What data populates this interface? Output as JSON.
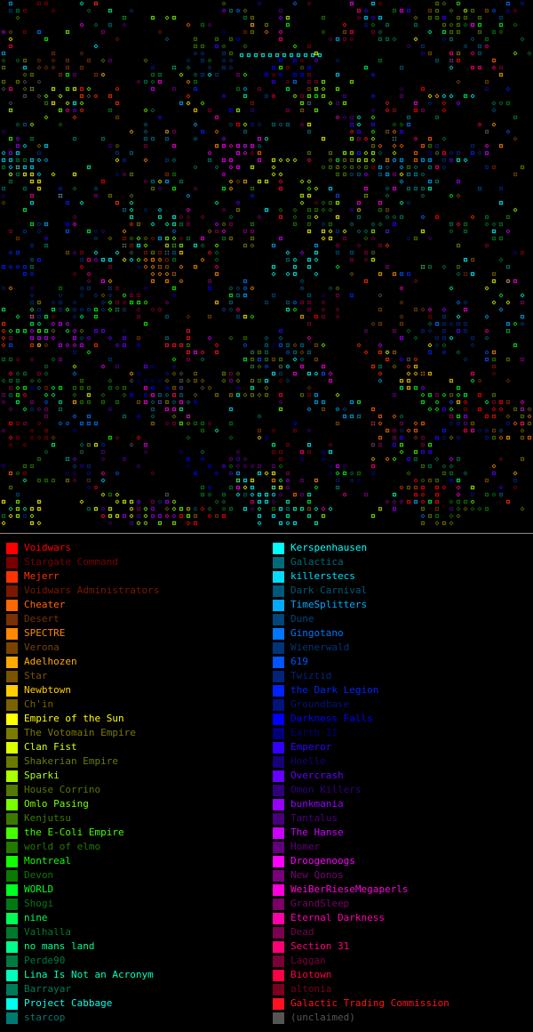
{
  "legend": {
    "left": [
      {
        "name": "Voidwars",
        "color": "#ff0000",
        "active": true
      },
      {
        "name": "Stargate Command",
        "color": "#7a0000",
        "active": false
      },
      {
        "name": "Mejerr",
        "color": "#ff3300",
        "active": true
      },
      {
        "name": "Voidwars Administrators",
        "color": "#7a1800",
        "active": false
      },
      {
        "name": "Cheater",
        "color": "#ff6600",
        "active": true
      },
      {
        "name": "Desert",
        "color": "#7a3000",
        "active": false
      },
      {
        "name": "SPECTRE",
        "color": "#ff8800",
        "active": true
      },
      {
        "name": "Verona",
        "color": "#7a4200",
        "active": false
      },
      {
        "name": "Adelhozen",
        "color": "#ffaa00",
        "active": true
      },
      {
        "name": "Star",
        "color": "#7a5200",
        "active": false
      },
      {
        "name": "Newbtown",
        "color": "#ffcc00",
        "active": true
      },
      {
        "name": "Ch'in",
        "color": "#7a6200",
        "active": false
      },
      {
        "name": "Empire of the Sun",
        "color": "#ffff00",
        "active": true
      },
      {
        "name": "The Votomain Empire",
        "color": "#7a7a00",
        "active": false
      },
      {
        "name": "Clan Fist",
        "color": "#ddff00",
        "active": true
      },
      {
        "name": "Shakerian Empire",
        "color": "#6a7a00",
        "active": false
      },
      {
        "name": "Sparki",
        "color": "#aaff00",
        "active": true
      },
      {
        "name": "House Corrino",
        "color": "#527a00",
        "active": false
      },
      {
        "name": "Omlo Pasing",
        "color": "#77ff00",
        "active": true
      },
      {
        "name": "Kenjutsu",
        "color": "#3a7a00",
        "active": false
      },
      {
        "name": "the E-Coli Empire",
        "color": "#44ff00",
        "active": true
      },
      {
        "name": "world of elmo",
        "color": "#227a00",
        "active": false
      },
      {
        "name": "Montreal",
        "color": "#11ff00",
        "active": true
      },
      {
        "name": "Devon",
        "color": "#0a7a00",
        "active": false
      },
      {
        "name": "WORLD",
        "color": "#00ff22",
        "active": true
      },
      {
        "name": "Shogi",
        "color": "#007a10",
        "active": false
      },
      {
        "name": "nine",
        "color": "#00ff55",
        "active": true
      },
      {
        "name": "Valhalla",
        "color": "#007a28",
        "active": false
      },
      {
        "name": "no mans land",
        "color": "#00ff88",
        "active": true
      },
      {
        "name": "Perde90",
        "color": "#007a40",
        "active": false
      },
      {
        "name": "Lina Is Not an Acronym",
        "color": "#00ffbb",
        "active": true
      },
      {
        "name": "Barrayar",
        "color": "#007a58",
        "active": false
      },
      {
        "name": "Project Cabbage",
        "color": "#00ffee",
        "active": true
      },
      {
        "name": "starcop",
        "color": "#007a70",
        "active": false
      }
    ],
    "right": [
      {
        "name": "Kerspenhausen",
        "color": "#00ffff",
        "active": true
      },
      {
        "name": "Galactica",
        "color": "#006a7a",
        "active": false
      },
      {
        "name": "killerstecs",
        "color": "#00ddff",
        "active": true
      },
      {
        "name": "Dark Carnival",
        "color": "#00587a",
        "active": false
      },
      {
        "name": "TimeSplitters",
        "color": "#00aaff",
        "active": true
      },
      {
        "name": "Dune",
        "color": "#00467a",
        "active": false
      },
      {
        "name": "Gingotano",
        "color": "#0077ff",
        "active": true
      },
      {
        "name": "Wienerwald",
        "color": "#00347a",
        "active": false
      },
      {
        "name": "619",
        "color": "#0055ff",
        "active": true
      },
      {
        "name": "Twiztid",
        "color": "#00247a",
        "active": false
      },
      {
        "name": "the Dark Legion",
        "color": "#0022ff",
        "active": true
      },
      {
        "name": "Groundbase",
        "color": "#00147a",
        "active": false
      },
      {
        "name": "Darkness Falls",
        "color": "#0000ff",
        "active": true
      },
      {
        "name": "Earth II",
        "color": "#00007a",
        "active": false
      },
      {
        "name": "Emperor",
        "color": "#3300ff",
        "active": true
      },
      {
        "name": "Hoelle",
        "color": "#18007a",
        "active": false
      },
      {
        "name": "Overcrash",
        "color": "#6600ff",
        "active": true
      },
      {
        "name": "Omen Killers",
        "color": "#30007a",
        "active": false
      },
      {
        "name": "bunkmania",
        "color": "#9900ff",
        "active": true
      },
      {
        "name": "Tantalus",
        "color": "#48007a",
        "active": false
      },
      {
        "name": "The Hanse",
        "color": "#cc00ff",
        "active": true
      },
      {
        "name": "Homer",
        "color": "#60007a",
        "active": false
      },
      {
        "name": "Droogenoogs",
        "color": "#ff00ff",
        "active": true
      },
      {
        "name": "New Qonos",
        "color": "#7a007a",
        "active": false
      },
      {
        "name": "WeiBerRieseMegaperls",
        "color": "#ff00dd",
        "active": true
      },
      {
        "name": "GrandSleep",
        "color": "#7a0068",
        "active": false
      },
      {
        "name": "Eternal Darkness",
        "color": "#ff00aa",
        "active": true
      },
      {
        "name": "Dead",
        "color": "#7a0050",
        "active": false
      },
      {
        "name": "Section 31",
        "color": "#ff0077",
        "active": true
      },
      {
        "name": "Laggan",
        "color": "#7a0038",
        "active": false
      },
      {
        "name": "Biotown",
        "color": "#ff0044",
        "active": true
      },
      {
        "name": "altonia",
        "color": "#7a0020",
        "active": false
      },
      {
        "name": "Galactic Trading Commission",
        "color": "#ff1122",
        "active": true
      },
      {
        "name": "(unclaimed)",
        "color": "#555555",
        "active": false
      }
    ]
  }
}
